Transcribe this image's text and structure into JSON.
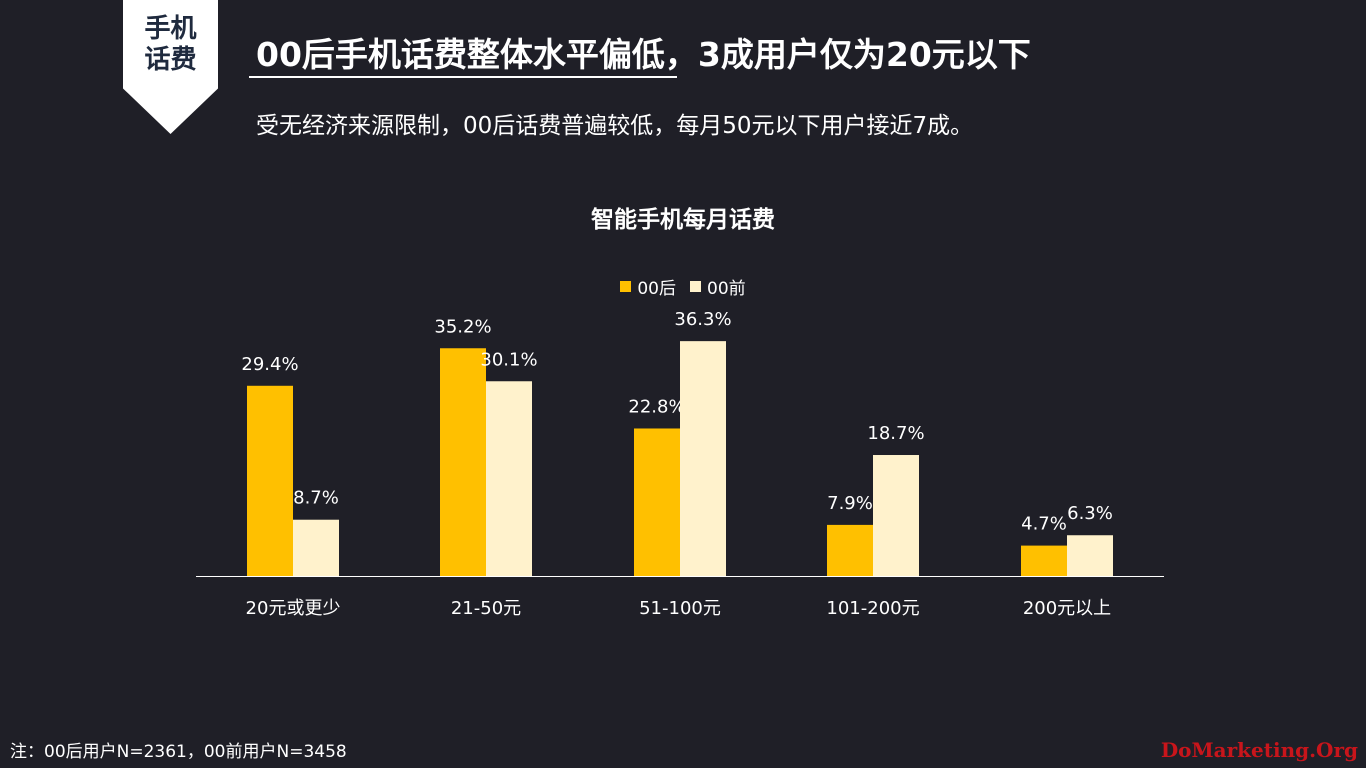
{
  "tag": {
    "line1": "手机",
    "line2": "话费"
  },
  "header": {
    "title": "00后手机话费整体水平偏低，3成用户仅为20元以下",
    "subtitle": "受无经济来源限制，00后话费普遍较低，每月50元以下用户接近7成。"
  },
  "colors": {
    "background": "#1f1f27",
    "series_1": "#ffc000",
    "series_2": "#fff2cc",
    "watermark": "#c8151b"
  },
  "chart_data": {
    "type": "bar",
    "title": "智能手机每月话费",
    "categories": [
      "20元或更少",
      "21-50元",
      "51-100元",
      "101-200元",
      "200元以上"
    ],
    "series": [
      {
        "name": "00后",
        "values": [
          29.4,
          35.2,
          22.8,
          7.9,
          4.7
        ],
        "labels": [
          "29.4%",
          "35.2%",
          "22.8%",
          "7.9%",
          "4.7%"
        ]
      },
      {
        "name": "00前",
        "values": [
          8.7,
          30.1,
          36.3,
          18.7,
          6.3
        ],
        "labels": [
          "8.7%",
          "30.1%",
          "36.3%",
          "18.7%",
          "6.3%"
        ]
      }
    ],
    "ylim": [
      0,
      40
    ],
    "grid": false,
    "legend_position": "top-center"
  },
  "footnote": "注：00后用户N=2361，00前用户N=3458",
  "watermark": "DoMarketing.Org"
}
